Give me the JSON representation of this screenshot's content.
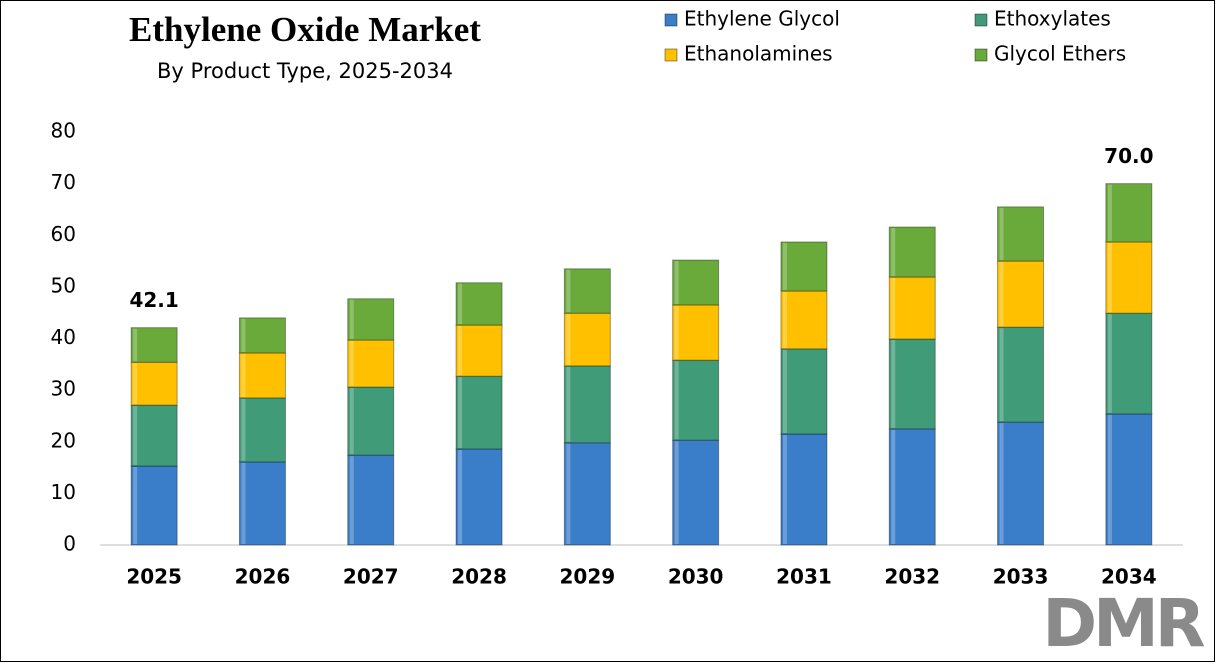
{
  "chart_data": {
    "type": "stacked_bar",
    "title": "Ethylene Oxide Market",
    "subtitle": "By Product Type, 2025-2034",
    "categories": [
      "2025",
      "2026",
      "2027",
      "2028",
      "2029",
      "2030",
      "2031",
      "2032",
      "2033",
      "2034"
    ],
    "series": [
      {
        "name": "Ethylene Glycol",
        "color": "#3a7dc9",
        "values": [
          15.3,
          16.1,
          17.4,
          18.6,
          19.8,
          20.3,
          21.5,
          22.5,
          23.8,
          25.4
        ]
      },
      {
        "name": "Ethoxylates",
        "color": "#3f9b78",
        "values": [
          11.8,
          12.4,
          13.2,
          14.1,
          14.9,
          15.5,
          16.5,
          17.4,
          18.4,
          19.5
        ]
      },
      {
        "name": "Ethanolamines",
        "color": "#ffc000",
        "values": [
          8.3,
          8.7,
          9.1,
          9.9,
          10.2,
          10.7,
          11.2,
          12.0,
          12.8,
          13.8
        ]
      },
      {
        "name": "Glycol Ethers",
        "color": "#6aaa3a",
        "values": [
          6.7,
          6.8,
          8.0,
          8.2,
          8.6,
          8.7,
          9.5,
          9.7,
          10.5,
          11.3
        ]
      }
    ],
    "annotations": [
      {
        "category": "2025",
        "value": 42.1,
        "label": "42.1"
      },
      {
        "category": "2034",
        "value": 70,
        "label": "70.0"
      }
    ],
    "ylim": [
      0,
      80
    ],
    "yticks": [
      0,
      10,
      20,
      30,
      40,
      50,
      60,
      70,
      80
    ],
    "grid": false,
    "legend": "top-right",
    "logo": "DMR"
  }
}
